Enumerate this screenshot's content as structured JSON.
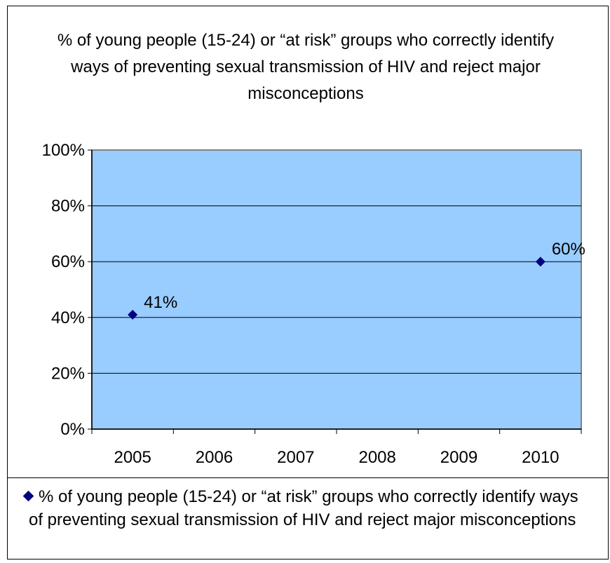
{
  "chart_data": {
    "type": "scatter",
    "title": "% of young people (15-24) or “at risk” groups who correctly identify ways of preventing sexual transmission of HIV and reject major misconceptions",
    "categories": [
      "2005",
      "2006",
      "2007",
      "2008",
      "2009",
      "2010"
    ],
    "y_ticks": [
      "0%",
      "20%",
      "40%",
      "60%",
      "80%",
      "100%"
    ],
    "ylim": [
      0,
      100
    ],
    "grid": true,
    "legend_position": "bottom",
    "series": [
      {
        "name": "% of young people (15-24) or “at risk” groups who correctly identify ways of preventing sexual transmission of HIV and reject major misconceptions",
        "points": [
          {
            "x": "2005",
            "y": 41,
            "label": "41%"
          },
          {
            "x": "2010",
            "y": 60,
            "label": "60%"
          }
        ]
      }
    ]
  },
  "colors": {
    "plot_background": "#99ccff",
    "marker": "#000080",
    "gridline": "#000000",
    "axis": "#000000",
    "plot_border": "#808080"
  }
}
